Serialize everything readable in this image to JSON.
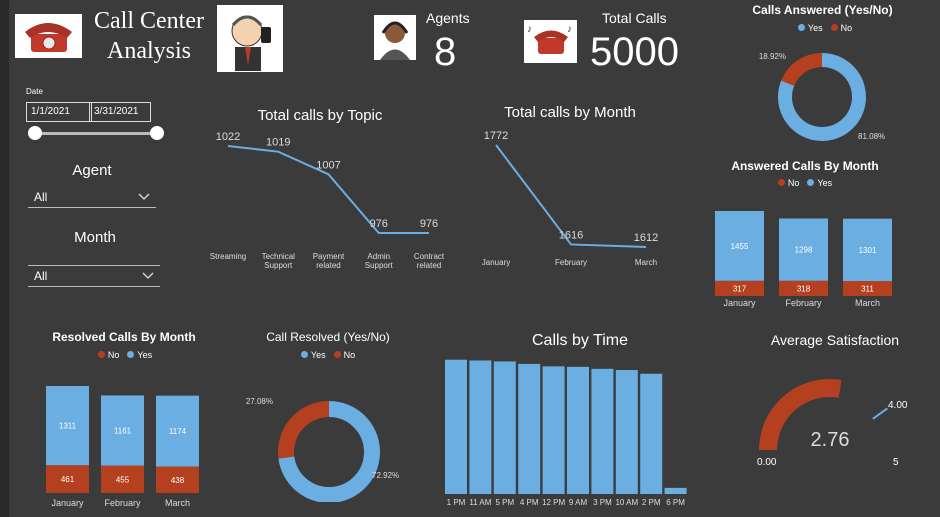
{
  "header": {
    "title_line1": "Call Center",
    "title_line2": "Analysis"
  },
  "kpis": {
    "agents_label": "Agents",
    "agents_value": "8",
    "total_calls_label": "Total Calls",
    "total_calls_value": "5000"
  },
  "filters": {
    "date_label": "Date",
    "date_start": "1/1/2021",
    "date_end": "3/31/2021",
    "agent_label": "Agent",
    "agent_value": "All",
    "month_label": "Month",
    "month_value": "All"
  },
  "colors": {
    "yes": "#6aaee2",
    "no": "#b5401f",
    "line": "#6aaee2"
  },
  "chart_data": [
    {
      "id": "topic",
      "type": "line",
      "title": "Total calls by Topic",
      "categories": [
        "Streaming",
        "Technical Support",
        "Payment related",
        "Admin Support",
        "Contract related"
      ],
      "values": [
        1022,
        1019,
        1007,
        976,
        976
      ]
    },
    {
      "id": "month",
      "type": "line",
      "title": "Total calls by Month",
      "categories": [
        "January",
        "February",
        "March"
      ],
      "values": [
        1772,
        1616,
        1612
      ]
    },
    {
      "id": "answered_pie",
      "type": "pie",
      "title": "Calls Answered (Yes/No)",
      "legend": [
        "Yes",
        "No"
      ],
      "slices": [
        {
          "label": "Yes",
          "value": 81.08,
          "text": "81.08%"
        },
        {
          "label": "No",
          "value": 18.92,
          "text": "18.92%"
        }
      ]
    },
    {
      "id": "answered_month",
      "type": "bar",
      "title": "Answered Calls By Month",
      "legend": [
        "No",
        "Yes"
      ],
      "categories": [
        "January",
        "February",
        "March"
      ],
      "series": [
        {
          "name": "No",
          "values": [
            317,
            318,
            311
          ]
        },
        {
          "name": "Yes",
          "values": [
            1455,
            1298,
            1301
          ]
        }
      ]
    },
    {
      "id": "resolved_month",
      "type": "bar",
      "title": "Resolved Calls By Month",
      "legend": [
        "No",
        "Yes"
      ],
      "categories": [
        "January",
        "February",
        "March"
      ],
      "series": [
        {
          "name": "No",
          "values": [
            461,
            455,
            438
          ]
        },
        {
          "name": "Yes",
          "values": [
            1311,
            1161,
            1174
          ]
        }
      ]
    },
    {
      "id": "resolved_pie",
      "type": "pie",
      "title": "Call Resolved (Yes/No)",
      "legend": [
        "Yes",
        "No"
      ],
      "slices": [
        {
          "label": "Yes",
          "value": 72.92,
          "text": "72.92%"
        },
        {
          "label": "No",
          "value": 27.08,
          "text": "27.08%"
        }
      ]
    },
    {
      "id": "time",
      "type": "bar",
      "title": "Calls by Time",
      "categories": [
        "1 PM",
        "11 AM",
        "5 PM",
        "4 PM",
        "12 PM",
        "9 AM",
        "3 PM",
        "10 AM",
        "2 PM",
        "6 PM"
      ],
      "values": [
        547,
        544,
        540,
        530,
        520,
        518,
        510,
        505,
        490,
        25
      ]
    },
    {
      "id": "satisfaction",
      "type": "gauge",
      "title": "Average Satisfaction",
      "value": 2.76,
      "value_text": "2.76",
      "min_text": "0.00",
      "max_text": "5",
      "target": 4.0,
      "target_text": "4.00",
      "max": 5
    }
  ]
}
